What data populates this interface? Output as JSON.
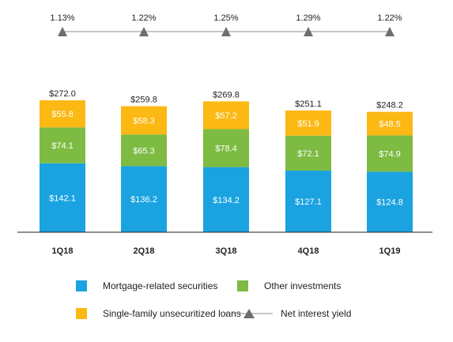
{
  "colors": {
    "mortgage": "#1aa3e0",
    "other": "#7dbb42",
    "single_family": "#fcb813",
    "yield": "#8c8c8c"
  },
  "chart_data": {
    "type": "bar",
    "stacked": true,
    "categories": [
      "1Q18",
      "2Q18",
      "3Q18",
      "4Q18",
      "1Q19"
    ],
    "series": [
      {
        "name": "Mortgage-related securities",
        "values": [
          142.1,
          136.2,
          134.2,
          127.1,
          124.8
        ],
        "labels": [
          "$142.1",
          "$136.2",
          "$134.2",
          "$127.1",
          "$124.8"
        ]
      },
      {
        "name": "Other investments",
        "values": [
          74.1,
          65.3,
          78.4,
          72.1,
          74.9
        ],
        "labels": [
          "$74.1",
          "$65.3",
          "$78.4",
          "$72.1",
          "$74.9"
        ]
      },
      {
        "name": "Single-family unsecuritized loans",
        "values": [
          55.8,
          58.3,
          57.2,
          51.9,
          48.5
        ],
        "labels": [
          "$55.8",
          "$58.3",
          "$57.2",
          "$51.9",
          "$48.5"
        ]
      }
    ],
    "totals": [
      272.0,
      259.8,
      269.8,
      251.1,
      248.2
    ],
    "total_labels": [
      "$272.0",
      "$259.8",
      "$269.8",
      "$251.1",
      "$248.2"
    ],
    "line_series": {
      "name": "Net interest yield",
      "values": [
        1.13,
        1.22,
        1.25,
        1.29,
        1.22
      ],
      "labels": [
        "1.13%",
        "1.22%",
        "1.25%",
        "1.29%",
        "1.22%"
      ]
    },
    "title": "",
    "xlabel": "",
    "ylabel": "",
    "ylim": [
      0,
      272.0
    ],
    "grid": false,
    "legend_position": "bottom"
  },
  "legend": {
    "mortgage": "Mortgage-related securities",
    "other": "Other investments",
    "single_family": "Single-family unsecuritized loans",
    "yield": "Net interest yield"
  }
}
